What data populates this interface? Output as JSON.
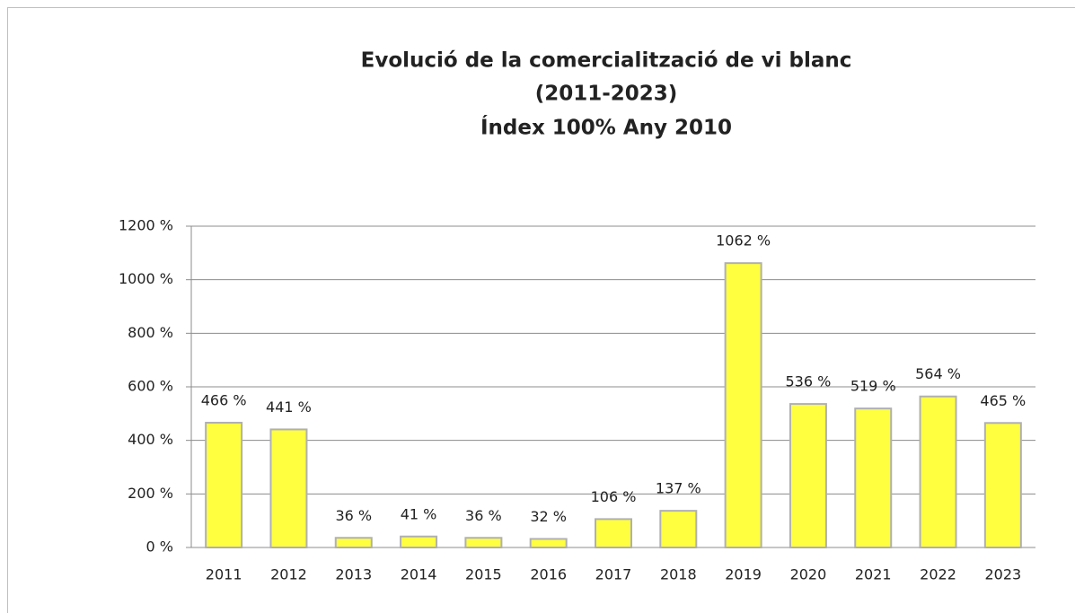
{
  "chart_data": {
    "type": "bar",
    "title": [
      "Evolució de la comercialització de  vi blanc",
      "(2011-2023)",
      "Índex 100% Any  2010"
    ],
    "categories": [
      "2011",
      "2012",
      "2013",
      "2014",
      "2015",
      "2016",
      "2017",
      "2018",
      "2019",
      "2020",
      "2021",
      "2022",
      "2023"
    ],
    "values": [
      466,
      441,
      36,
      41,
      36,
      32,
      106,
      137,
      1062,
      536,
      519,
      564,
      465
    ],
    "value_labels": [
      "466 %",
      "441 %",
      "36 %",
      "41 %",
      "36 %",
      "32 %",
      "106 %",
      "137 %",
      "1062 %",
      "536 %",
      "519 %",
      "564 %",
      "465 %"
    ],
    "color": "#ffff40",
    "ylim": [
      0,
      1200
    ],
    "yticks": [
      {
        "value": 0,
        "label": "0 %"
      },
      {
        "value": 200,
        "label": "200 %"
      },
      {
        "value": 400,
        "label": "400 %"
      },
      {
        "value": 600,
        "label": "600 %"
      },
      {
        "value": 800,
        "label": "800 %"
      },
      {
        "value": 1000,
        "label": "1000 %"
      },
      {
        "value": 1200,
        "label": "1200 %"
      }
    ],
    "grid": true
  }
}
